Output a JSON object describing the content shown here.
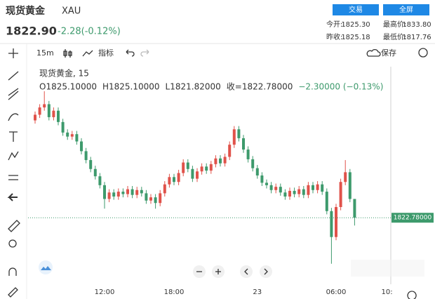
{
  "header": {
    "title": "现货黄金",
    "symbol": "XAU",
    "price": "1822.90",
    "change": "-2.28(-0.12%)",
    "buttons": [
      "交易",
      "全屏"
    ],
    "stats": [
      [
        "今开:",
        "1825.30",
        "最高价:",
        "1833.80"
      ],
      [
        "昨收:",
        "1825.18",
        "最低价:",
        "1817.76"
      ]
    ]
  },
  "toolbar": {
    "interval": "15m",
    "indicators": "指标",
    "save": "保存"
  },
  "chart_data": {
    "type": "candlestick",
    "title": "现货黄金, 15",
    "ohlc_text": [
      "O1825.10000",
      "H1825.10000",
      "L1821.82000",
      "收=1822.78000",
      "−2.30000 (−0.13%)"
    ],
    "up_color": "#e0524a",
    "down_color": "#3d9a6c",
    "categories": [
      null,
      null,
      null,
      null,
      null,
      null,
      null,
      null,
      null,
      null,
      null,
      null,
      null,
      null,
      null,
      "12:00",
      null,
      null,
      null,
      null,
      null,
      null,
      null,
      null,
      null,
      null,
      null,
      null,
      null,
      null,
      "18:00",
      null,
      null,
      null,
      null,
      null,
      null,
      null,
      null,
      null,
      null,
      null,
      null,
      null,
      null,
      null,
      null,
      null,
      "23",
      null,
      null,
      null,
      null,
      null,
      null,
      null,
      null,
      null,
      null,
      null,
      null,
      null,
      null,
      null,
      null,
      "06:00",
      null,
      null,
      null,
      null,
      null,
      null,
      null,
      null,
      null,
      null,
      "10:"
    ],
    "open": [
      1834.8,
      1835.5,
      1836.4,
      1836.8,
      1835.2,
      1836.0,
      1834.6,
      1833.3,
      1832.8,
      1833.1,
      1832.2,
      1831.0,
      1829.9,
      1828.8,
      1827.9,
      1826.8,
      1825.1,
      1825.9,
      1825.4,
      1826.0,
      1825.7,
      1826.3,
      1825.6,
      1826.2,
      1825.8,
      1824.9,
      1825.3,
      1824.6,
      1825.8,
      1826.9,
      1827.8,
      1827.2,
      1828.3,
      1829.6,
      1828.8,
      1827.6,
      1828.5,
      1829.1,
      1828.6,
      1829.4,
      1830.1,
      1829.5,
      1830.3,
      1831.8,
      1833.7,
      1832.6,
      1831.2,
      1830.0,
      1828.9,
      1828.0,
      1827.1,
      1826.8,
      1826.2,
      1826.6,
      1825.9,
      1825.4,
      1826.1,
      1825.7,
      1826.3,
      1825.6,
      1826.8,
      1826.2,
      1826.9,
      1826.0,
      1823.6,
      1820.4,
      1824.1,
      1827.2,
      1828.4,
      1825.1,
      null,
      null,
      null,
      null,
      null,
      null,
      null
    ],
    "high": [
      1835.9,
      1836.8,
      1838.4,
      1837.2,
      1836.4,
      1836.4,
      1835.0,
      1833.7,
      1833.5,
      1833.5,
      1832.6,
      1831.4,
      1830.3,
      1829.2,
      1828.3,
      1827.2,
      1826.3,
      1826.3,
      1826.4,
      1826.4,
      1826.7,
      1826.7,
      1826.6,
      1826.6,
      1826.2,
      1825.7,
      1825.7,
      1826.2,
      1827.3,
      1828.2,
      1828.2,
      1828.7,
      1830.0,
      1830.0,
      1829.2,
      1828.9,
      1829.5,
      1829.5,
      1829.8,
      1830.5,
      1830.5,
      1830.7,
      1832.2,
      1834.1,
      1834.1,
      1833.0,
      1831.6,
      1830.4,
      1829.3,
      1828.4,
      1827.5,
      1827.2,
      1827.0,
      1827.0,
      1826.3,
      1826.5,
      1826.5,
      1826.7,
      1826.7,
      1827.2,
      1827.2,
      1827.3,
      1827.3,
      1826.4,
      1824.0,
      1824.5,
      1827.6,
      1829.9,
      1828.8,
      1825.1,
      null,
      null,
      null,
      null,
      null,
      null,
      null
    ],
    "low": [
      1834.4,
      1835.1,
      1836.0,
      1834.8,
      1834.8,
      1834.2,
      1832.9,
      1832.4,
      1832.4,
      1831.8,
      1830.6,
      1829.5,
      1828.4,
      1827.5,
      1826.4,
      1823.9,
      1824.7,
      1825.0,
      1825.0,
      1825.3,
      1825.3,
      1825.2,
      1825.2,
      1825.4,
      1824.5,
      1824.5,
      1823.9,
      1824.2,
      1825.4,
      1826.5,
      1826.8,
      1826.8,
      1827.9,
      1828.4,
      1827.2,
      1827.2,
      1828.1,
      1828.2,
      1828.2,
      1829.0,
      1829.1,
      1829.1,
      1829.9,
      1831.4,
      1832.2,
      1830.8,
      1829.6,
      1828.5,
      1827.6,
      1826.7,
      1826.4,
      1825.8,
      1825.8,
      1825.5,
      1825.0,
      1825.0,
      1825.3,
      1825.3,
      1825.2,
      1825.2,
      1825.8,
      1825.8,
      1825.6,
      1823.2,
      1817.1,
      1820.0,
      1823.7,
      1826.8,
      1824.7,
      1821.82,
      null,
      null,
      null,
      null,
      null,
      null,
      null
    ],
    "close": [
      1835.5,
      1836.4,
      1836.8,
      1835.2,
      1836.0,
      1834.6,
      1833.3,
      1832.8,
      1833.1,
      1832.2,
      1831.0,
      1829.9,
      1828.8,
      1827.9,
      1826.8,
      1825.1,
      1825.9,
      1825.4,
      1826.0,
      1825.7,
      1826.3,
      1825.6,
      1826.2,
      1825.8,
      1824.9,
      1825.3,
      1824.6,
      1825.8,
      1826.9,
      1827.8,
      1827.2,
      1828.3,
      1829.6,
      1828.8,
      1827.6,
      1828.5,
      1829.1,
      1828.6,
      1829.4,
      1830.1,
      1829.5,
      1830.3,
      1831.8,
      1833.7,
      1832.6,
      1831.2,
      1830.0,
      1828.9,
      1828.0,
      1827.1,
      1826.8,
      1826.2,
      1826.6,
      1825.9,
      1825.4,
      1826.1,
      1825.7,
      1826.3,
      1825.6,
      1826.8,
      1826.2,
      1826.9,
      1826.0,
      1823.6,
      1820.4,
      1824.1,
      1827.2,
      1828.4,
      1825.1,
      1822.78,
      null,
      null,
      null,
      null,
      null,
      null,
      null
    ],
    "ylim": [
      1815,
      1841
    ],
    "price_line": {
      "value": 1822.78,
      "label": "1822.78000"
    }
  }
}
